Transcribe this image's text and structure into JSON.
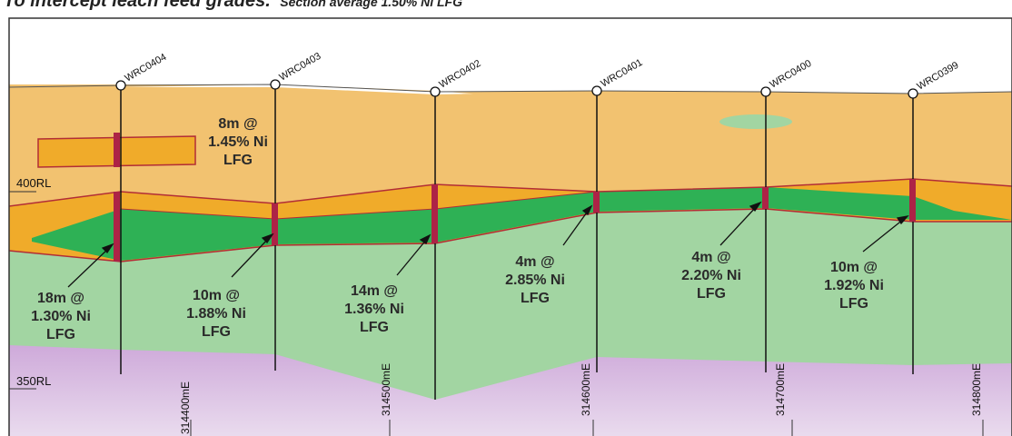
{
  "title": {
    "main": "To intercept leach feed grades.",
    "subtitle": "Section average 1.50% Ni LFG"
  },
  "rl_labels": [
    "400RL",
    "350RL"
  ],
  "easting_labels": [
    "314400mE",
    "314500mE",
    "314600mE",
    "314700mE",
    "314800mE"
  ],
  "holes": [
    "WRC0404",
    "WRC0403",
    "WRC0402",
    "WRC0401",
    "WRC0400",
    "WRC0399"
  ],
  "intercepts": [
    {
      "hole": "WRC0404",
      "lines": [
        "8m @",
        "1.45% Ni",
        "LFG"
      ]
    },
    {
      "hole": "WRC0404",
      "lines": [
        "18m @",
        "1.30% Ni",
        "LFG"
      ]
    },
    {
      "hole": "WRC0403",
      "lines": [
        "10m @",
        "1.88% Ni",
        "LFG"
      ]
    },
    {
      "hole": "WRC0402",
      "lines": [
        "14m @",
        "1.36% Ni",
        "LFG"
      ]
    },
    {
      "hole": "WRC0401",
      "lines": [
        "4m @",
        "2.85% Ni",
        "LFG"
      ]
    },
    {
      "hole": "WRC0400",
      "lines": [
        "4m @",
        "2.20% Ni",
        "LFG"
      ]
    },
    {
      "hole": "WRC0399",
      "lines": [
        "10m @",
        "1.92% Ni",
        "LFG"
      ]
    }
  ],
  "colors": {
    "laterite_upper": "#f2c270",
    "laterite_ore": "#f0ab2a",
    "high_grade": "#2eb155",
    "saprolite": "#a2d5a2",
    "bedrock_top": "#c9a0d6",
    "bedrock_bottom": "#ece0f0",
    "ore_outline": "#b22d36",
    "intercept": "#ad2346",
    "frame": "#333333"
  }
}
